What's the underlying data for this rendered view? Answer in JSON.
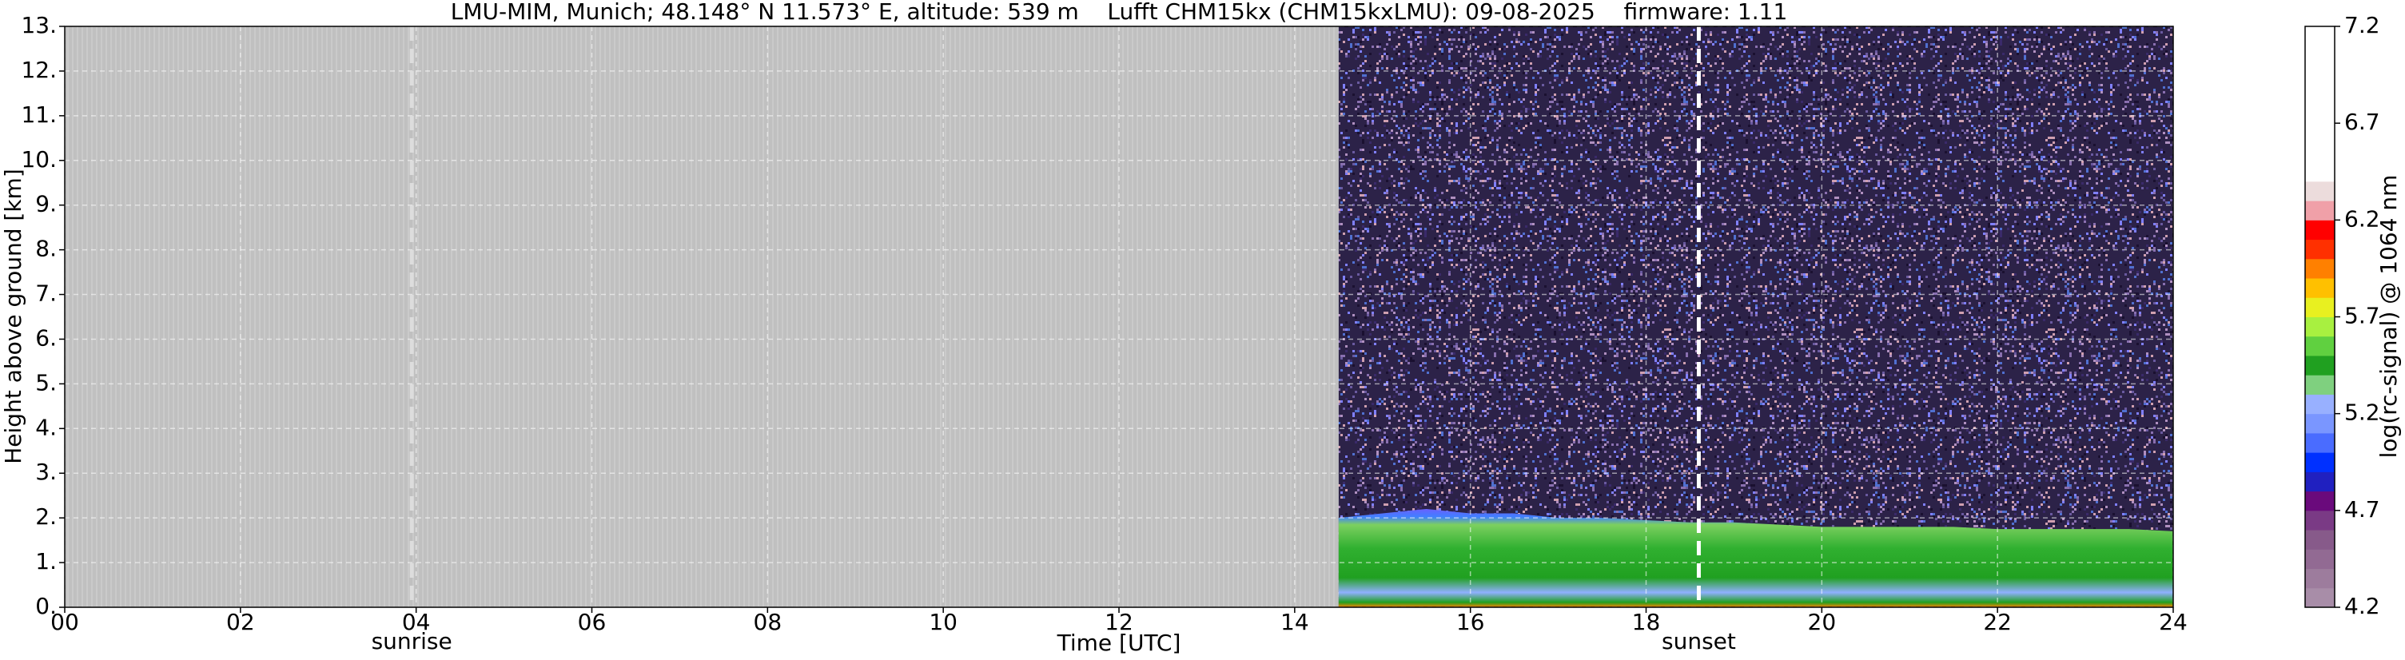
{
  "chart_data": {
    "type": "heatmap",
    "title": "LMU-MIM, Munich; 48.148° N 11.573° E, altitude: 539 m    Lufft CHM15kx (CHM15kxLMU): 09-08-2025    firmware: 1.11",
    "x_label": "Time [UTC]",
    "y_label": "Height above ground [km]",
    "xlim": [
      0,
      24
    ],
    "ylim": [
      0,
      13
    ],
    "xticks": [
      {
        "value": 0,
        "label": "00"
      },
      {
        "value": 2,
        "label": "02"
      },
      {
        "value": 4,
        "label": "04"
      },
      {
        "value": 6,
        "label": "06"
      },
      {
        "value": 8,
        "label": "08"
      },
      10,
      12,
      14,
      16,
      18,
      20,
      22,
      24
    ],
    "yticks": [
      {
        "value": 0,
        "label": "0."
      },
      {
        "value": 1,
        "label": "1."
      },
      {
        "value": 2,
        "label": "2."
      },
      {
        "value": 3,
        "label": "3."
      },
      {
        "value": 4,
        "label": "4."
      },
      {
        "value": 5,
        "label": "5."
      },
      {
        "value": 6,
        "label": "6."
      },
      {
        "value": 7,
        "label": "7."
      },
      {
        "value": 8,
        "label": "8."
      },
      {
        "value": 9,
        "label": "9."
      },
      {
        "value": 10,
        "label": "10."
      },
      {
        "value": 11,
        "label": "11."
      },
      {
        "value": 12,
        "label": "12."
      },
      {
        "value": 13,
        "label": "13."
      }
    ],
    "grid": true,
    "x": [
      14.5,
      15,
      15.5,
      16,
      16.5,
      17,
      17.5,
      18,
      18.5,
      19,
      19.5,
      20,
      20.5,
      21,
      21.5,
      22,
      22.5,
      23,
      23.5,
      24
    ],
    "values": [
      2.0,
      2.1,
      2.2,
      2.1,
      2.1,
      2.0,
      2.0,
      1.95,
      1.9,
      1.9,
      1.85,
      1.8,
      1.8,
      1.8,
      1.8,
      1.75,
      1.75,
      1.75,
      1.75,
      1.7
    ],
    "annotations": [
      {
        "text": "sunrise",
        "x": 3.95
      },
      {
        "text": "sunset",
        "x": 18.6
      }
    ],
    "colorbar": {
      "label": "log(rc-signal) @ 1064 nm",
      "lim": [
        4.2,
        7.2
      ],
      "ticks": [
        4.2,
        4.7,
        5.2,
        5.7,
        6.2,
        6.7,
        7.2
      ],
      "colors": [
        "#a88da8",
        "#9d7c9d",
        "#926a93",
        "#875a8a",
        "#7a3a85",
        "#6a0a7c",
        "#2020c0",
        "#0030ff",
        "#4a6cff",
        "#7a96ff",
        "#98b0ff",
        "#7fd07f",
        "#20a020",
        "#60d040",
        "#a8f040",
        "#e8f020",
        "#ffc000",
        "#ff8000",
        "#ff3000",
        "#ff0000",
        "#f0a0a8",
        "#ecdcdc",
        "#ffffff",
        "#ffffff",
        "#ffffff",
        "#ffffff",
        "#ffffff",
        "#ffffff",
        "#ffffff",
        "#ffffff"
      ]
    }
  }
}
